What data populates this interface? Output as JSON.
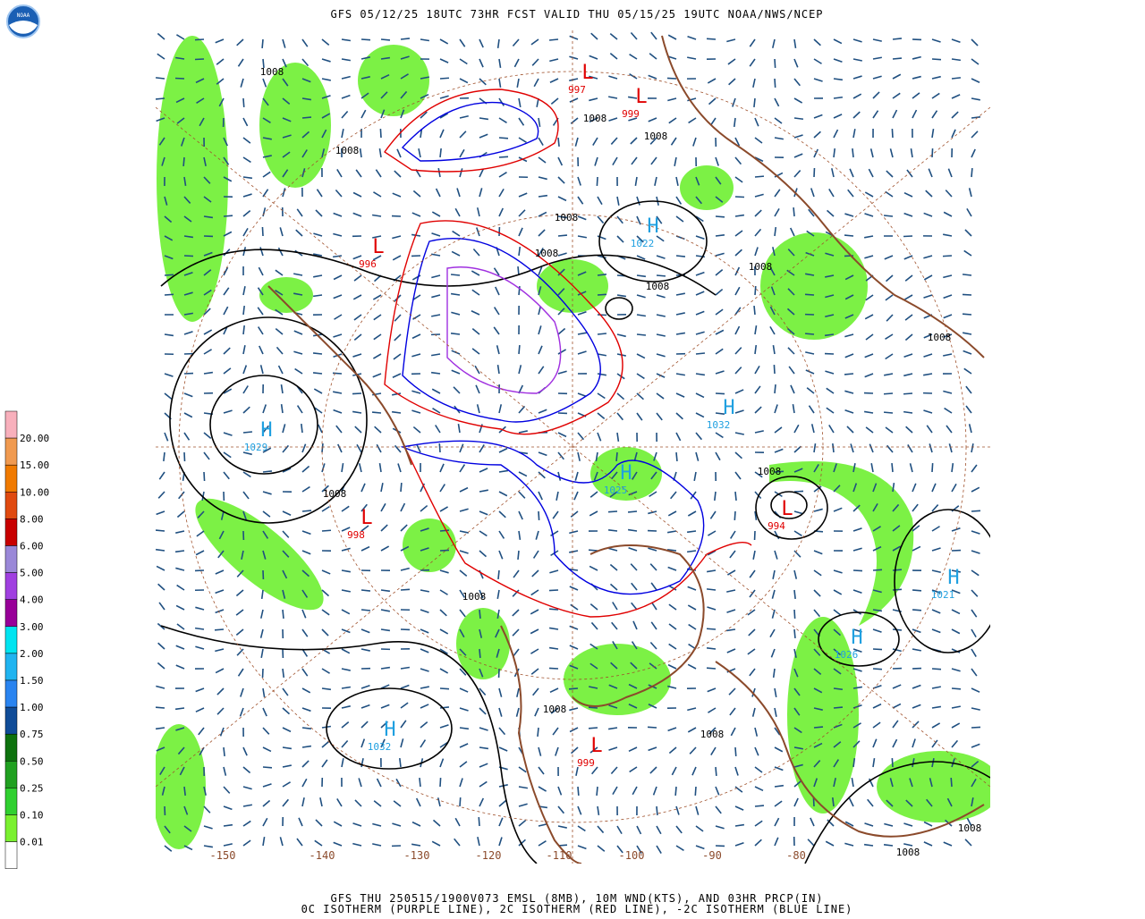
{
  "header": {
    "title": "GFS 05/12/25 18UTC 73HR FCST VALID THU 05/15/25 19UTC NOAA/NWS/NCEP",
    "logo": "NOAA"
  },
  "legend": {
    "labels": [
      "20.00",
      "15.00",
      "10.00",
      "8.00",
      "6.00",
      "5.00",
      "4.00",
      "3.00",
      "2.00",
      "1.50",
      "1.00",
      "0.75",
      "0.50",
      "0.25",
      "0.10",
      "0.01"
    ],
    "colors": [
      "#f8b0bc",
      "#f09a50",
      "#f07a00",
      "#e04a10",
      "#c80000",
      "#9a88d8",
      "#a040e0",
      "#980098",
      "#00e4f0",
      "#20b4f0",
      "#2a84f0",
      "#104c98",
      "#0e720e",
      "#20a020",
      "#30d030",
      "#7af030",
      "#ffffff"
    ]
  },
  "map": {
    "longitude_labels": [
      "-150",
      "-140",
      "-130",
      "-120",
      "-110",
      "-100",
      "-90",
      "-80"
    ],
    "centers": [
      {
        "letter": "H",
        "pressure": "1029",
        "color": "#20a0e0"
      },
      {
        "letter": "H",
        "pressure": "1032",
        "color": "#20a0e0"
      },
      {
        "letter": "H",
        "pressure": "1021",
        "color": "#20a0e0"
      },
      {
        "letter": "H",
        "pressure": "1026",
        "color": "#20a0e0"
      },
      {
        "letter": "H",
        "pressure": "1032",
        "color": "#20a0e0"
      },
      {
        "letter": "H",
        "pressure": "1022",
        "color": "#20a0e0"
      },
      {
        "letter": "H",
        "pressure": "1025",
        "color": "#20a0e0"
      },
      {
        "letter": "L",
        "pressure": "999",
        "color": "#e00000"
      },
      {
        "letter": "L",
        "pressure": "997",
        "color": "#e00000"
      },
      {
        "letter": "L",
        "pressure": "998",
        "color": "#e00000"
      },
      {
        "letter": "L",
        "pressure": "996",
        "color": "#e00000"
      },
      {
        "letter": "L",
        "pressure": "994",
        "color": "#e00000"
      },
      {
        "letter": "L",
        "pressure": "999",
        "color": "#e00000"
      }
    ],
    "isobar_labels": [
      "1008",
      "1008",
      "1008",
      "1008",
      "1008",
      "1008",
      "1008",
      "1008",
      "1008",
      "1008",
      "1008",
      "1008",
      "1008",
      "1008",
      "1008",
      "1008"
    ]
  },
  "footer": {
    "line1": "GFS THU 250515/1900V073 EMSL (8MB), 10M WND(KTS), AND 03HR PRCP(IN)",
    "line2": "0C ISOTHERM (PURPLE LINE), 2C ISOTHERM (RED LINE), -2C ISOTHERM (BLUE LINE)"
  }
}
